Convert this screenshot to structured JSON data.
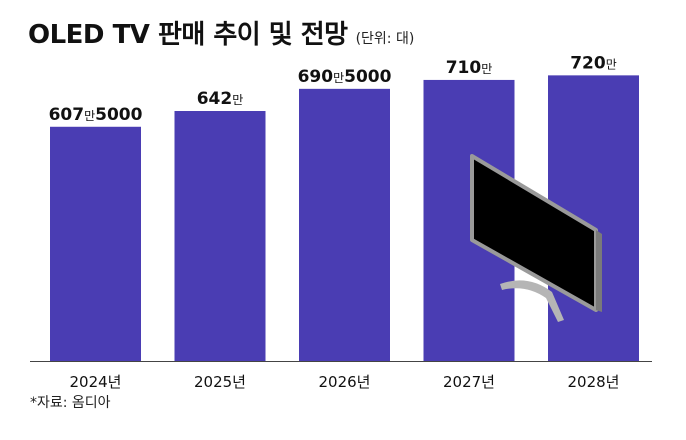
{
  "title": "OLED TV 판매 추이 및 전망",
  "unit_note": "(단위: 대)",
  "source": "*자료: 옴디아",
  "colors": {
    "bar": "#4a3db3",
    "text": "#111111",
    "axis": "#444444"
  },
  "chart_data": {
    "type": "bar",
    "title": "OLED TV 판매 추이 및 전망",
    "xlabel": "",
    "ylabel": "",
    "unit": "대",
    "categories": [
      "2024년",
      "2025년",
      "2026년",
      "2027년",
      "2028년"
    ],
    "values": [
      6075000,
      6420000,
      6905000,
      7100000,
      7200000
    ],
    "data_labels": [
      {
        "num": "607",
        "man": "만",
        "rest": "5000"
      },
      {
        "num": "642",
        "man": "만",
        "rest": ""
      },
      {
        "num": "690",
        "man": "만",
        "rest": "5000"
      },
      {
        "num": "710",
        "man": "만",
        "rest": ""
      },
      {
        "num": "720",
        "man": "만",
        "rest": ""
      }
    ],
    "grid": false,
    "legend": "none"
  }
}
